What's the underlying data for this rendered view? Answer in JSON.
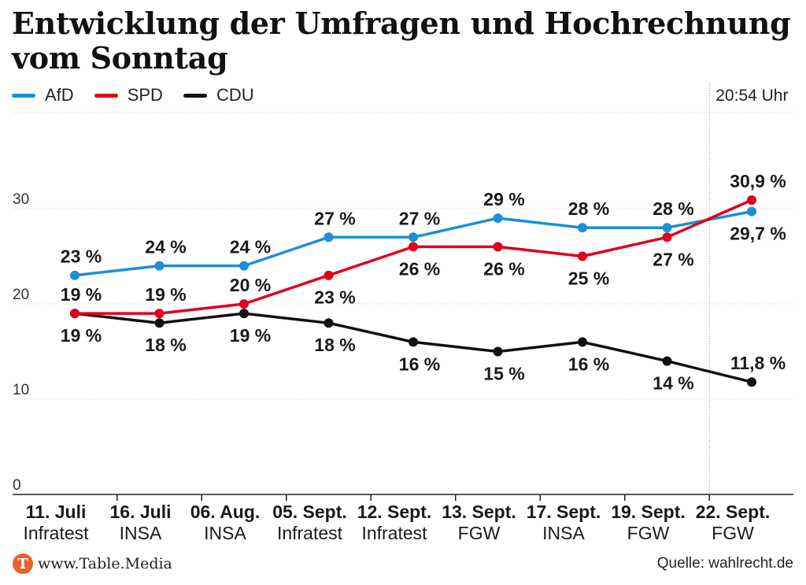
{
  "header": {
    "title_line1": "Entwicklung der Umfragen und Hochrechnung",
    "title_line2": "vom Sonntag"
  },
  "colors": {
    "afd": "#1b8fd8",
    "spd": "#e2001a",
    "cdu": "#111111",
    "logo": "#e8622a"
  },
  "legend": [
    {
      "label": "AfD",
      "color": "#1b8fd8"
    },
    {
      "label": "SPD",
      "color": "#e2001a"
    },
    {
      "label": "CDU",
      "color": "#111111"
    }
  ],
  "footer": {
    "logo_letter": "T",
    "site": "www.Table.Media",
    "source": "Quelle: wahlrecht.de"
  },
  "chart_data": {
    "type": "line",
    "title": "Entwicklung der Umfragen und Hochrechnung vom Sonntag",
    "ylim": [
      0,
      40
    ],
    "yticks": [
      0,
      10,
      20,
      30
    ],
    "grid": true,
    "legend_position": "top-left",
    "marker_label": "20:54 Uhr",
    "categories": [
      {
        "date": "11. Juli",
        "source": "Infratest"
      },
      {
        "date": "16. Juli",
        "source": "INSA"
      },
      {
        "date": "06. Aug.",
        "source": "INSA"
      },
      {
        "date": "05. Sept.",
        "source": "Infratest"
      },
      {
        "date": "12. Sept.",
        "source": "Infratest"
      },
      {
        "date": "13. Sept.",
        "source": "FGW"
      },
      {
        "date": "17. Sept.",
        "source": "INSA"
      },
      {
        "date": "19. Sept.",
        "source": "FGW"
      },
      {
        "date": "22. Sept.",
        "source": "FGW"
      }
    ],
    "series": [
      {
        "name": "AfD",
        "color": "#1b8fd8",
        "values": [
          23,
          24,
          24,
          27,
          27,
          29,
          28,
          28,
          29.7
        ],
        "labels": [
          "23 %",
          "24 %",
          "24 %",
          "27 %",
          "27 %",
          "29 %",
          "28 %",
          "28 %",
          "29,7 %"
        ],
        "label_pos": [
          "above",
          "above",
          "above",
          "above",
          "above",
          "above",
          "above",
          "above",
          "below"
        ]
      },
      {
        "name": "SPD",
        "color": "#e2001a",
        "values": [
          19,
          19,
          20,
          23,
          26,
          26,
          25,
          27,
          30.9
        ],
        "labels": [
          "19 %",
          "19 %",
          "20 %",
          "23 %",
          "26 %",
          "26 %",
          "25 %",
          "27 %",
          "30,9 %"
        ],
        "label_pos": [
          "above",
          "above",
          "above",
          "below",
          "below",
          "below",
          "below",
          "below",
          "above"
        ]
      },
      {
        "name": "CDU",
        "color": "#111111",
        "values": [
          19,
          18,
          19,
          18,
          16,
          15,
          16,
          14,
          11.8
        ],
        "labels": [
          "19 %",
          "18 %",
          "19 %",
          "18 %",
          "16 %",
          "15 %",
          "16 %",
          "14 %",
          "11,8 %"
        ],
        "label_pos": [
          "below",
          "below",
          "below",
          "below",
          "below",
          "below",
          "below",
          "below",
          "above"
        ]
      }
    ]
  }
}
